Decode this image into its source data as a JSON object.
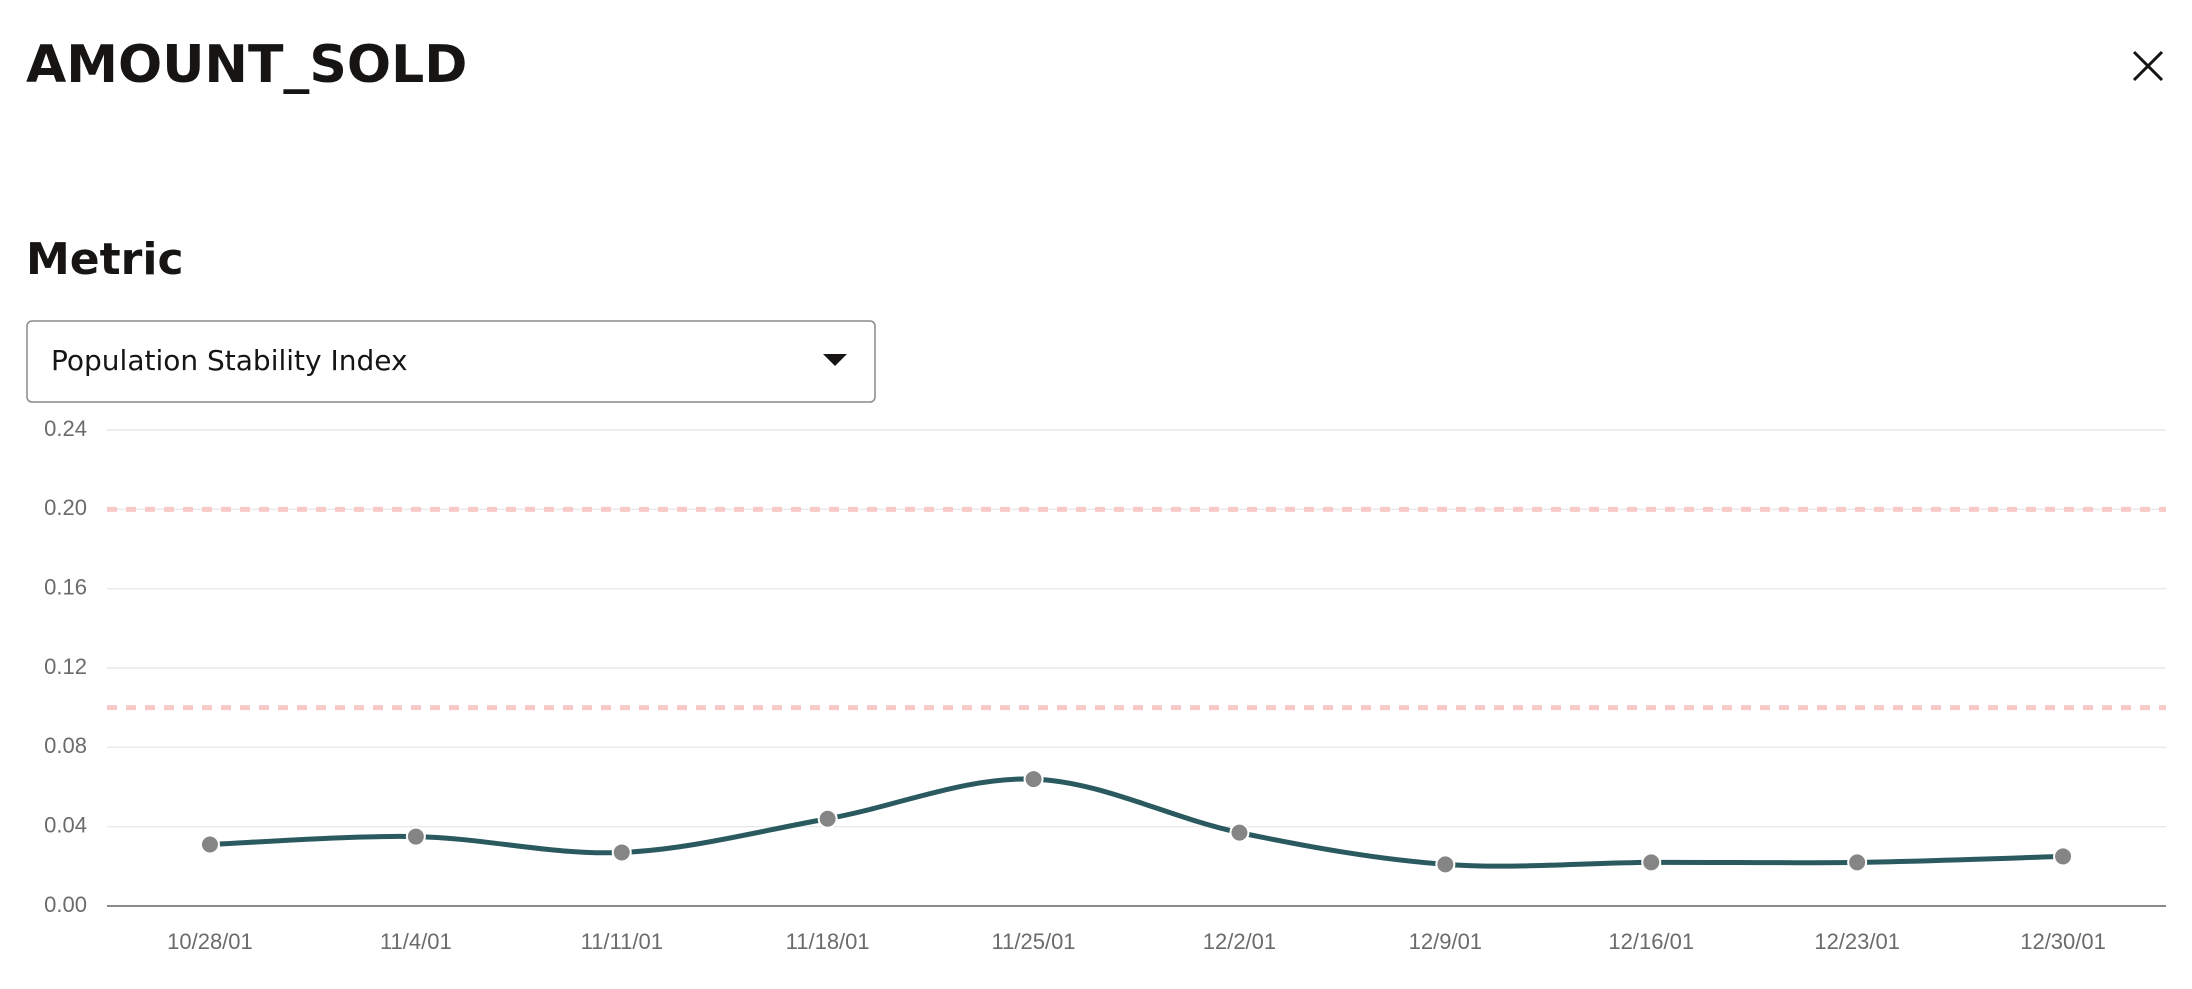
{
  "header": {
    "title": "AMOUNT_SOLD"
  },
  "metric": {
    "label": "Metric",
    "selected": "Population Stability Index"
  },
  "chart_data": {
    "type": "line",
    "categories": [
      "10/28/01",
      "11/4/01",
      "11/11/01",
      "11/18/01",
      "11/25/01",
      "12/2/01",
      "12/9/01",
      "12/16/01",
      "12/23/01",
      "12/30/01"
    ],
    "series": [
      {
        "color": "#2a5a5f",
        "values": [
          0.031,
          0.035,
          0.027,
          0.044,
          0.064,
          0.037,
          0.021,
          0.022,
          0.022,
          0.025
        ]
      }
    ],
    "ylim": [
      0,
      0.24
    ],
    "yticks": [
      {
        "value": 0,
        "label": "0.00"
      },
      0.04,
      0.08,
      0.12,
      0.16,
      {
        "value": 0.2,
        "label": "0.20"
      },
      0.24
    ],
    "thresholds": [
      0.1,
      0.2
    ],
    "threshold_color": "#f8c9c6",
    "grid": true
  }
}
